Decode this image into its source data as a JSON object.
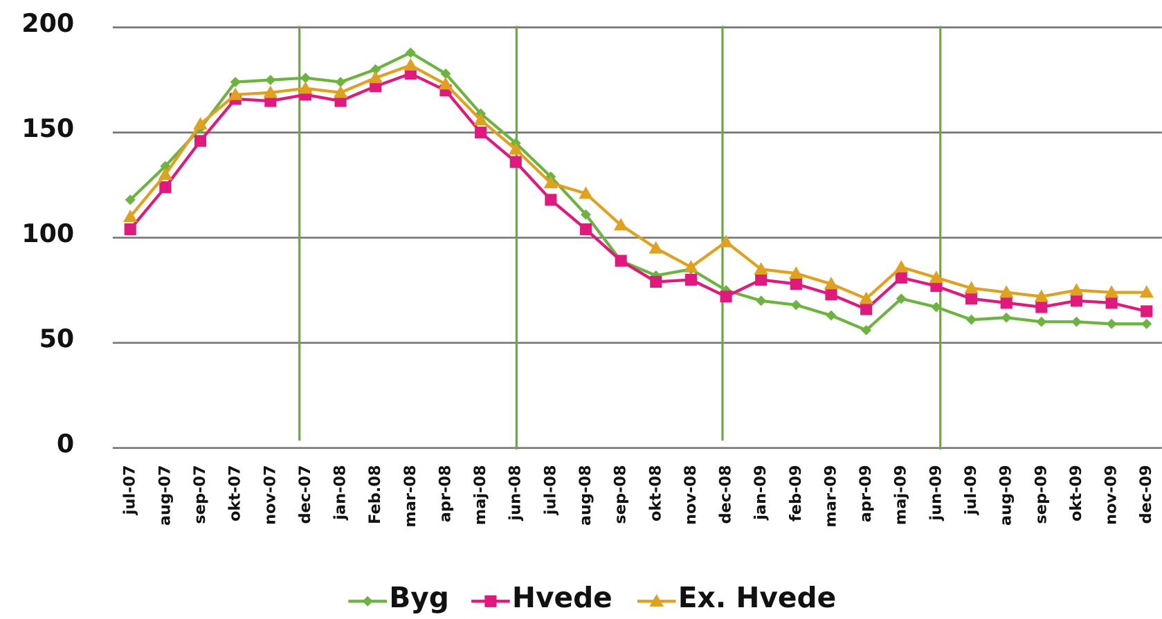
{
  "chart_data": {
    "type": "line",
    "categories": [
      "jul-07",
      "aug-07",
      "sep-07",
      "okt-07",
      "nov-07",
      "dec-07",
      "jan-08",
      "Feb.08",
      "mar-08",
      "apr-08",
      "maj-08",
      "jun-08",
      "jul-08",
      "aug-08",
      "sep-08",
      "okt-08",
      "nov-08",
      "dec-08",
      "jan-09",
      "feb-09",
      "mar-09",
      "apr-09",
      "maj-09",
      "jun-09",
      "jul-09",
      "aug-09",
      "sep-09",
      "okt-09",
      "nov-09",
      "dec-09"
    ],
    "series": [
      {
        "name": "Byg",
        "color": "#6db33f",
        "marker": "diamond",
        "values": [
          118,
          134,
          152,
          174,
          175,
          176,
          174,
          180,
          188,
          178,
          159,
          145,
          129,
          111,
          89,
          82,
          85,
          75,
          70,
          68,
          63,
          56,
          71,
          67,
          61,
          62,
          60,
          60,
          59,
          59
        ]
      },
      {
        "name": "Hvede",
        "color": "#e0197d",
        "marker": "square",
        "values": [
          104,
          124,
          146,
          166,
          165,
          168,
          165,
          172,
          178,
          170,
          150,
          136,
          118,
          104,
          89,
          79,
          80,
          72,
          80,
          78,
          73,
          66,
          81,
          77,
          71,
          69,
          67,
          70,
          69,
          65
        ]
      },
      {
        "name": "Ex. Hvede",
        "color": "#e0a020",
        "marker": "triangle",
        "values": [
          110,
          130,
          154,
          168,
          169,
          171,
          169,
          176,
          182,
          173,
          156,
          142,
          126,
          121,
          106,
          95,
          86,
          98,
          85,
          83,
          78,
          71,
          86,
          81,
          76,
          74,
          72,
          75,
          74,
          74
        ]
      }
    ],
    "ylim": [
      0,
      200
    ],
    "yticks": [
      0,
      50,
      100,
      150,
      200
    ],
    "grid": true,
    "legend": "bottom"
  }
}
